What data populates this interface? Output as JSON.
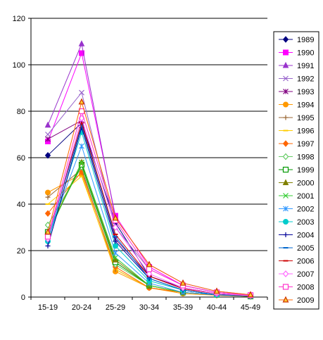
{
  "chart_data": {
    "type": "line",
    "title": "",
    "xlabel": "",
    "ylabel": "",
    "categories": [
      "15-19",
      "20-24",
      "25-29",
      "30-34",
      "35-39",
      "40-44",
      "45-49"
    ],
    "ylim": [
      0,
      120
    ],
    "yticks": [
      0,
      20,
      40,
      60,
      80,
      100,
      120
    ],
    "grid": true,
    "legend_position": "right",
    "series": [
      {
        "name": "1989",
        "color": "#000080",
        "marker": "diamond",
        "values": [
          61,
          75,
          32,
          9,
          4,
          1.5,
          0.5
        ]
      },
      {
        "name": "1990",
        "color": "#FF00FF",
        "marker": "square",
        "values": [
          67,
          105,
          35,
          13,
          5,
          2,
          0.8
        ]
      },
      {
        "name": "1991",
        "color": "#9933CC",
        "marker": "triangle",
        "values": [
          74,
          109,
          34,
          14,
          6,
          2.5,
          1
        ]
      },
      {
        "name": "1992",
        "color": "#9966CC",
        "marker": "x",
        "values": [
          70,
          88,
          30,
          12,
          5,
          2,
          0.8
        ]
      },
      {
        "name": "1993",
        "color": "#800080",
        "marker": "star",
        "values": [
          68,
          76,
          25,
          9,
          4,
          1.5,
          0.5
        ]
      },
      {
        "name": "1994",
        "color": "#FF9900",
        "marker": "circle",
        "values": [
          45,
          53,
          11,
          4,
          1.5,
          0.8,
          0.3
        ]
      },
      {
        "name": "1995",
        "color": "#996633",
        "marker": "plus",
        "values": [
          43,
          55,
          12,
          4,
          2,
          0.8,
          0.3
        ]
      },
      {
        "name": "1996",
        "color": "#FFCC00",
        "marker": "dash",
        "values": [
          40,
          52,
          12,
          4,
          2,
          0.8,
          0.3
        ]
      },
      {
        "name": "1997",
        "color": "#FF6600",
        "marker": "diamond",
        "values": [
          36,
          54,
          13,
          4,
          2,
          0.8,
          0.3
        ]
      },
      {
        "name": "1998",
        "color": "#66CC66",
        "marker": "diamond-open",
        "values": [
          31,
          56,
          14,
          5,
          2,
          1,
          0.3
        ]
      },
      {
        "name": "1999",
        "color": "#009900",
        "marker": "square-open",
        "values": [
          28,
          57,
          15,
          5,
          2,
          1,
          0.3
        ]
      },
      {
        "name": "2000",
        "color": "#808000",
        "marker": "triangle",
        "values": [
          28,
          58,
          16,
          5,
          2,
          1,
          0.4
        ]
      },
      {
        "name": "2001",
        "color": "#33CC33",
        "marker": "x",
        "values": [
          27,
          58,
          17,
          5,
          2,
          1,
          0.4
        ]
      },
      {
        "name": "2002",
        "color": "#3399FF",
        "marker": "star",
        "values": [
          26,
          65,
          19,
          6,
          2,
          1,
          0.4
        ]
      },
      {
        "name": "2003",
        "color": "#00CCCC",
        "marker": "circle",
        "values": [
          24,
          71,
          22,
          7,
          3,
          1,
          0.5
        ]
      },
      {
        "name": "2004",
        "color": "#000099",
        "marker": "plus",
        "values": [
          22,
          73,
          24,
          8,
          3,
          1,
          0.5
        ]
      },
      {
        "name": "2005",
        "color": "#0066CC",
        "marker": "dash",
        "values": [
          25,
          74,
          26,
          8,
          3,
          1,
          0.5
        ]
      },
      {
        "name": "2006",
        "color": "#CC0000",
        "marker": "dash",
        "values": [
          26,
          75,
          27,
          9,
          3.5,
          1.5,
          0.5
        ]
      },
      {
        "name": "2007",
        "color": "#FF66FF",
        "marker": "diamond-open",
        "values": [
          25,
          77,
          30,
          10,
          4,
          1.5,
          0.6
        ]
      },
      {
        "name": "2008",
        "color": "#FF33CC",
        "marker": "square-open",
        "values": [
          26,
          80,
          33,
          12,
          5,
          2,
          0.8
        ]
      },
      {
        "name": "2009",
        "color": "#FF6600",
        "marker": "triangle-open",
        "values": [
          28,
          84,
          34,
          14,
          6,
          2.5,
          1
        ]
      }
    ]
  }
}
